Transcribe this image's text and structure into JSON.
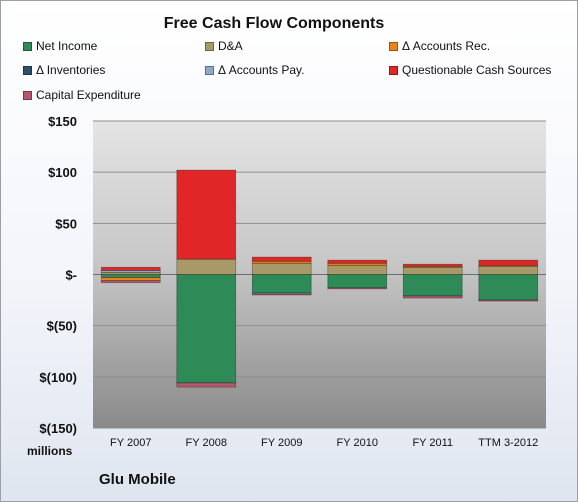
{
  "chart_data": {
    "type": "bar",
    "stacked": true,
    "title": "Free Cash Flow Components",
    "unit_label": "millions",
    "company": "Glu Mobile",
    "categories": [
      "FY 2007",
      "FY 2008",
      "FY 2009",
      "FY 2010",
      "FY 2011",
      "TTM 3-2012"
    ],
    "ylim": [
      -150,
      150
    ],
    "yticks": [
      150,
      100,
      50,
      0,
      -50,
      -100,
      -150
    ],
    "ytick_labels": [
      "$150",
      "$100",
      "$50",
      "$-",
      "$(50)",
      "$(100)",
      "$(150)"
    ],
    "grid": true,
    "legend_position": "top",
    "series": [
      {
        "name": "Net Income",
        "color": "#2e8b57",
        "values": [
          -3,
          -106,
          -18,
          -13,
          -21,
          -25
        ]
      },
      {
        "name": "D&A",
        "color": "#a89968",
        "values": [
          2,
          15,
          11,
          9,
          7,
          8
        ]
      },
      {
        "name": "Δ Accounts Rec.",
        "color": "#e8841c",
        "values": [
          -3,
          0,
          2,
          2,
          1,
          1
        ]
      },
      {
        "name": "Δ Inventories",
        "color": "#2f4f6f",
        "values": [
          0,
          0,
          0,
          0,
          0,
          0
        ]
      },
      {
        "name": "Δ Accounts Pay.",
        "color": "#8fa8c8",
        "values": [
          2,
          0,
          -1,
          0,
          0,
          0
        ]
      },
      {
        "name": "Questionable Cash Sources",
        "color": "#e02626",
        "values": [
          3,
          87,
          4,
          3,
          2,
          5
        ]
      },
      {
        "name": "Capital Expenditure",
        "color": "#b5566e",
        "values": [
          -2,
          -4,
          -1,
          -1,
          -2,
          -1
        ]
      }
    ]
  }
}
